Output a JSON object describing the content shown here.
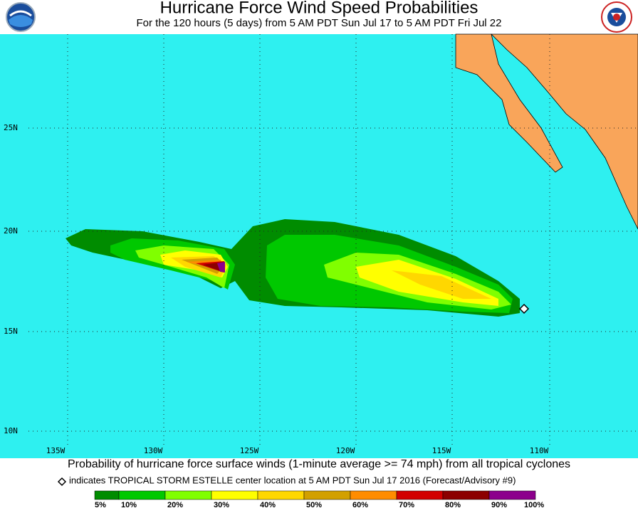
{
  "header": {
    "title": "Hurricane Force Wind Speed Probabilities",
    "subtitle": "For the 120 hours (5 days) from 5 AM PDT Sun Jul 17 to 5 AM PDT Fri Jul 22"
  },
  "map": {
    "lat_labels": [
      "25N",
      "20N",
      "15N",
      "10N"
    ],
    "lon_labels": [
      "135W",
      "130W",
      "125W",
      "120W",
      "115W",
      "110W"
    ]
  },
  "footer": {
    "caption": "Probability of hurricane force surface winds (1-minute average >= 74 mph) from all tropical cyclones",
    "note": "indicates TROPICAL STORM ESTELLE center location at 5 AM PDT Sun Jul 17 2016 (Forecast/Advisory #9)"
  },
  "legend": {
    "colors": [
      "#008c00",
      "#00c800",
      "#80ff00",
      "#ffff00",
      "#ffd700",
      "#d2a000",
      "#ff8c00",
      "#d20000",
      "#8c0000",
      "#8c008c"
    ],
    "labels": [
      "5%",
      "10%",
      "20%",
      "30%",
      "40%",
      "50%",
      "60%",
      "70%",
      "80%",
      "90%",
      "100%"
    ]
  }
}
